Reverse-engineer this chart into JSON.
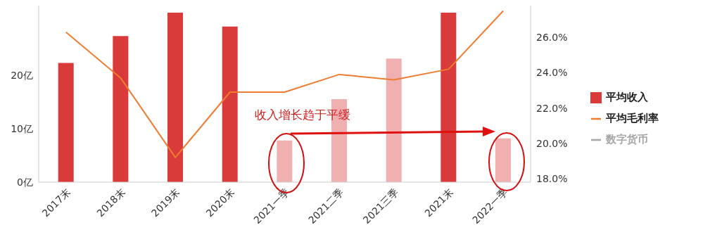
{
  "chart_data": {
    "type": "bar",
    "categories": [
      "2017末",
      "2018末",
      "2019末",
      "2020末",
      "2021一季",
      "2021二季",
      "2021三季",
      "2021末",
      "2022一季"
    ],
    "series": [
      {
        "name": "平均收入",
        "color": "#d93a3a",
        "colors": [
          "#d93a3a",
          "#d93a3a",
          "#d93a3a",
          "#d93a3a",
          "#f0b0b0",
          "#f0b0b0",
          "#f0b0b0",
          "#d93a3a",
          "#f0b0b0"
        ],
        "values": [
          22.3,
          27.3,
          31.7,
          29.1,
          7.8,
          15.5,
          23.1,
          31.7,
          8.2
        ]
      },
      {
        "name": "平均毛利率",
        "type": "line",
        "axis": "y2",
        "color": "#ed7d31",
        "values": [
          26.3,
          23.7,
          19.2,
          22.9,
          22.9,
          23.9,
          23.6,
          24.2,
          27.5
        ]
      },
      {
        "name": "数字货币",
        "type": "line",
        "axis": "y2",
        "color": "#a6a6a6",
        "values": [
          null,
          null,
          null,
          null,
          null,
          null,
          null,
          null,
          null
        ]
      }
    ],
    "ylim": [
      0,
      33
    ],
    "yticks": [
      {
        "value": 0,
        "label": "0亿"
      },
      {
        "value": 10,
        "label": "10亿"
      },
      {
        "value": 20,
        "label": "20亿"
      }
    ],
    "y2lim": [
      17.8,
      27.8
    ],
    "y2ticks": [
      {
        "value": 18,
        "label": "18.0%"
      },
      {
        "value": 20,
        "label": "20.0%"
      },
      {
        "value": 22,
        "label": "22.0%"
      },
      {
        "value": 24,
        "label": "24.0%"
      },
      {
        "value": 26,
        "label": "26.0%"
      }
    ],
    "annotations": [
      "收入增长趋于平缓"
    ],
    "legend": "right",
    "grid": false,
    "marker": "none"
  }
}
